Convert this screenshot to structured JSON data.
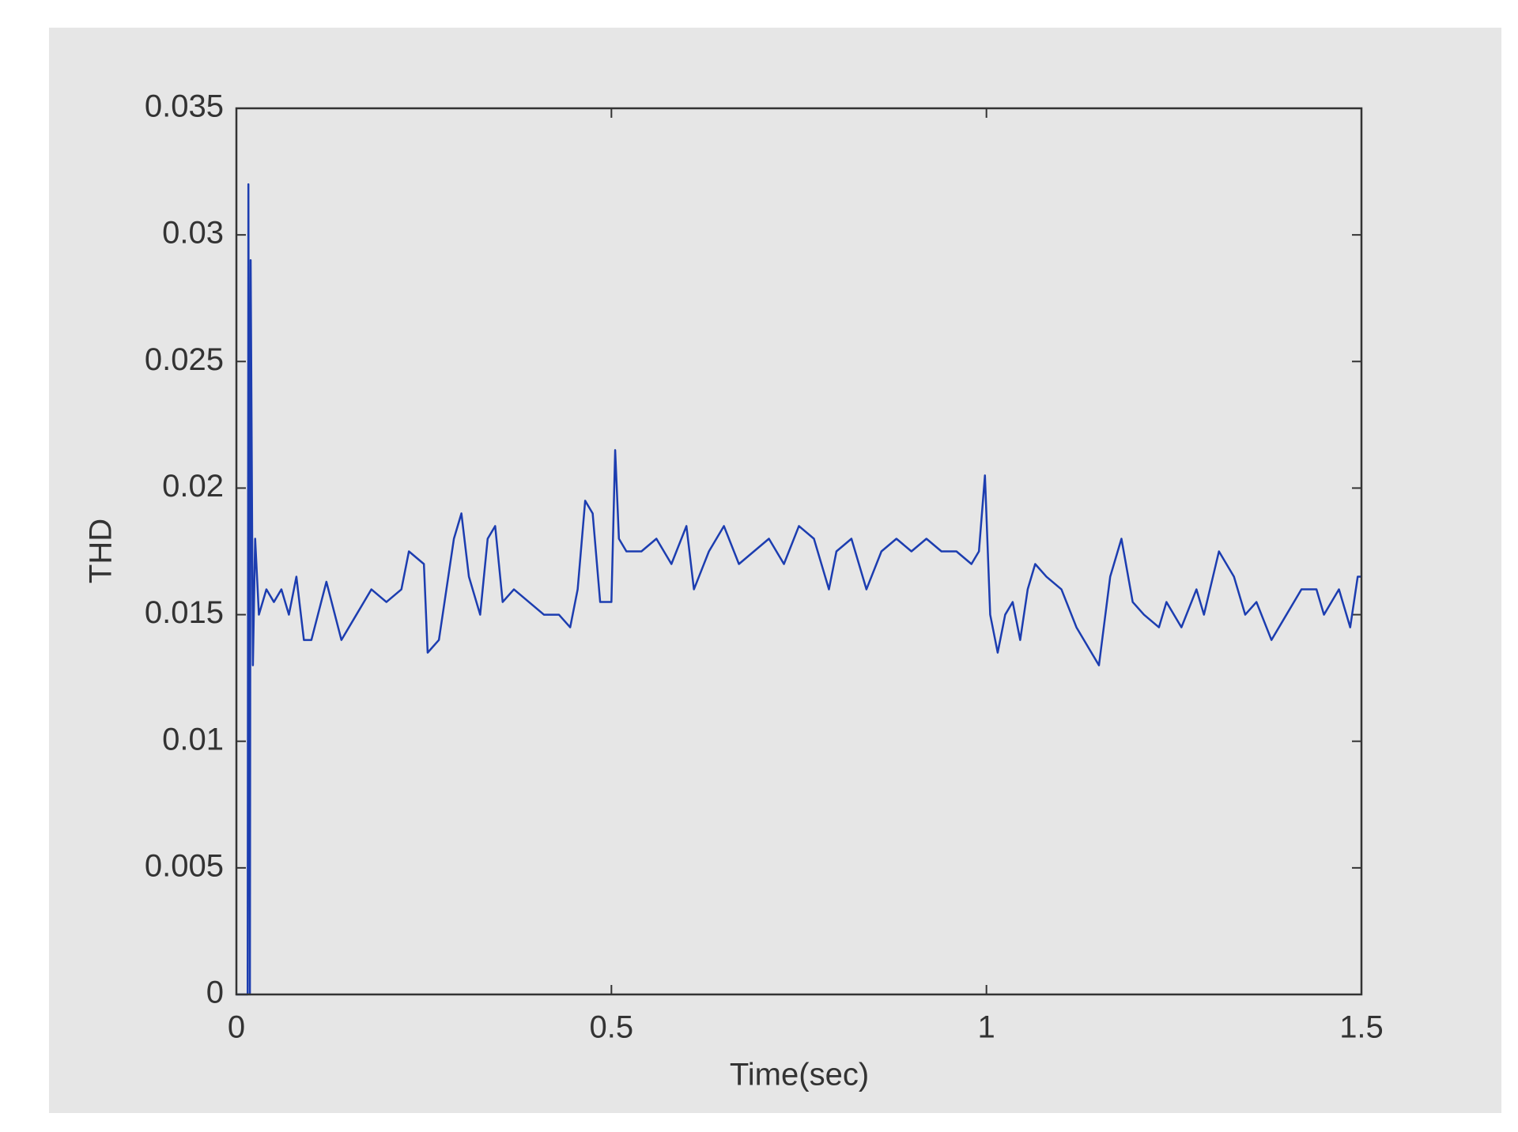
{
  "chart_data": {
    "type": "line",
    "xlabel": "Time(sec)",
    "ylabel": "THD",
    "xlim": [
      0,
      1.5
    ],
    "ylim": [
      0,
      0.035
    ],
    "xticks": [
      0,
      0.5,
      1,
      1.5
    ],
    "yticks": [
      0,
      0.005,
      0.01,
      0.015,
      0.02,
      0.025,
      0.03,
      0.035
    ],
    "grid": false,
    "x": [
      0,
      0.015,
      0.016,
      0.018,
      0.019,
      0.022,
      0.025,
      0.03,
      0.04,
      0.05,
      0.06,
      0.07,
      0.08,
      0.09,
      0.1,
      0.12,
      0.14,
      0.16,
      0.18,
      0.2,
      0.22,
      0.23,
      0.25,
      0.255,
      0.27,
      0.28,
      0.29,
      0.3,
      0.31,
      0.325,
      0.335,
      0.345,
      0.355,
      0.37,
      0.39,
      0.41,
      0.43,
      0.445,
      0.455,
      0.465,
      0.475,
      0.485,
      0.5,
      0.505,
      0.51,
      0.52,
      0.54,
      0.56,
      0.58,
      0.6,
      0.61,
      0.63,
      0.65,
      0.67,
      0.69,
      0.71,
      0.73,
      0.75,
      0.77,
      0.79,
      0.8,
      0.82,
      0.84,
      0.86,
      0.88,
      0.9,
      0.92,
      0.94,
      0.96,
      0.98,
      0.99,
      0.998,
      1.005,
      1.015,
      1.025,
      1.035,
      1.045,
      1.055,
      1.065,
      1.08,
      1.1,
      1.12,
      1.15,
      1.165,
      1.18,
      1.195,
      1.21,
      1.23,
      1.24,
      1.26,
      1.28,
      1.29,
      1.31,
      1.33,
      1.345,
      1.36,
      1.38,
      1.4,
      1.42,
      1.44,
      1.45,
      1.47,
      1.485,
      1.495,
      1.5
    ],
    "series": [
      {
        "color": "#1c3db0",
        "values": [
          0,
          0,
          0.032,
          0,
          0.029,
          0.013,
          0.018,
          0.015,
          0.016,
          0.0155,
          0.016,
          0.015,
          0.0165,
          0.014,
          0.014,
          0.0163,
          0.014,
          0.015,
          0.016,
          0.0155,
          0.016,
          0.0175,
          0.017,
          0.0135,
          0.014,
          0.016,
          0.018,
          0.019,
          0.0165,
          0.015,
          0.018,
          0.0185,
          0.0155,
          0.016,
          0.0155,
          0.015,
          0.015,
          0.0145,
          0.016,
          0.0195,
          0.019,
          0.0155,
          0.0155,
          0.0215,
          0.018,
          0.0175,
          0.0175,
          0.018,
          0.017,
          0.0185,
          0.016,
          0.0175,
          0.0185,
          0.017,
          0.0175,
          0.018,
          0.017,
          0.0185,
          0.018,
          0.016,
          0.0175,
          0.018,
          0.016,
          0.0175,
          0.018,
          0.0175,
          0.018,
          0.0175,
          0.0175,
          0.017,
          0.0175,
          0.0205,
          0.015,
          0.0135,
          0.015,
          0.0155,
          0.014,
          0.016,
          0.017,
          0.0165,
          0.016,
          0.0145,
          0.013,
          0.0165,
          0.018,
          0.0155,
          0.015,
          0.0145,
          0.0155,
          0.0145,
          0.016,
          0.015,
          0.0175,
          0.0165,
          0.015,
          0.0155,
          0.014,
          0.015,
          0.016,
          0.016,
          0.015,
          0.016,
          0.0145,
          0.0165,
          0.0165
        ]
      }
    ]
  }
}
